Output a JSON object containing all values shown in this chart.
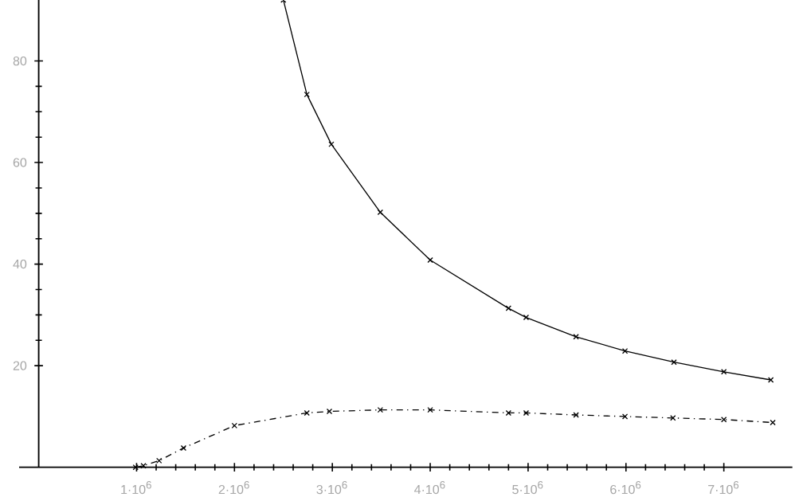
{
  "chart_data": {
    "type": "line",
    "series": [
      {
        "color": "#000000",
        "line_style": "solid",
        "x": [
          2500000,
          2740000,
          2990000,
          3490000,
          4000000,
          4800000,
          4980000,
          5490000,
          5990000,
          6490000,
          7000000,
          7480000
        ],
        "values": [
          92,
          73.4,
          63.6,
          50.2,
          40.8,
          31.3,
          29.5,
          25.7,
          22.9,
          20.7,
          18.8,
          17.2
        ]
      },
      {
        "color": "#000000",
        "line_style": "dotted",
        "x": [
          990000,
          1070000,
          1230000,
          1480000,
          2000000,
          2740000,
          2970000,
          3490000,
          4000000,
          4800000,
          4980000,
          5490000,
          5990000,
          6480000,
          7000000,
          7500000
        ],
        "values": [
          0,
          0.3,
          1.3,
          3.8,
          8.2,
          10.7,
          11.0,
          11.3,
          11.3,
          10.7,
          10.7,
          10.3,
          10.0,
          9.7,
          9.4,
          8.8
        ]
      }
    ],
    "marker": "cross",
    "xlim": [
      -200000,
      7700000
    ],
    "ylim": [
      0,
      92
    ],
    "xticks": [
      {
        "value": 1000000,
        "label": "1·10$^{6}$"
      },
      {
        "value": 2000000,
        "label": "2·10$^{6}$"
      },
      {
        "value": 3000000,
        "label": "3·10$^{6}$"
      },
      {
        "value": 4000000,
        "label": "4·10$^{6}$"
      },
      {
        "value": 5000000,
        "label": "5·10$^{6}$"
      },
      {
        "value": 6000000,
        "label": "6·10$^{6}$"
      },
      {
        "value": 7000000,
        "label": "7·10$^{6}$"
      }
    ],
    "yticks": [
      20,
      40,
      60,
      80
    ],
    "grid": false
  }
}
